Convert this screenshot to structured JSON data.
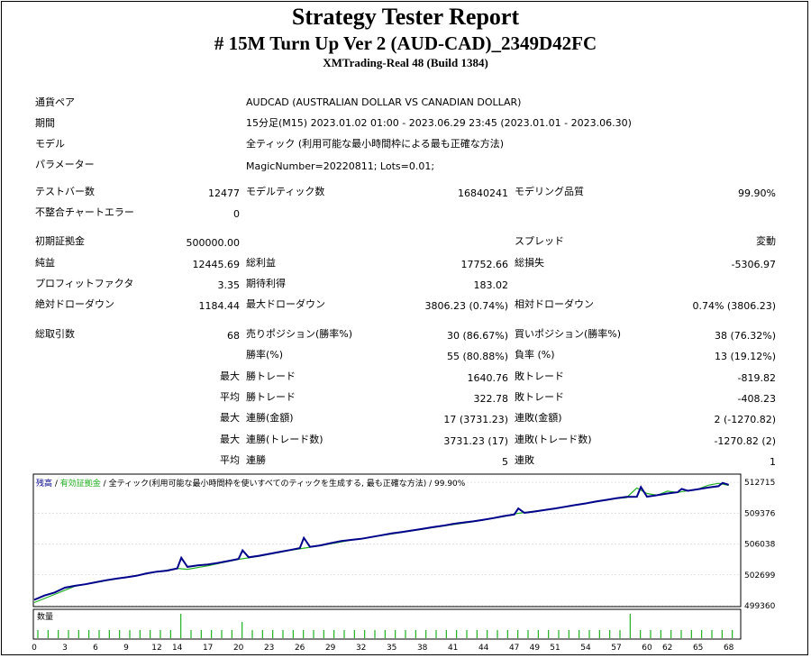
{
  "report": {
    "title": "Strategy Tester Report",
    "subtitle": "# 15M Turn Up Ver 2 (AUD-CAD)_2349D42FC",
    "server": "XMTrading-Real 48 (Build 1384)"
  },
  "info": {
    "symbol_label": "通貨ペア",
    "symbol_value": "AUDCAD (AUSTRALIAN DOLLAR VS CANADIAN DOLLAR)",
    "period_label": "期間",
    "period_value": "15分足(M15) 2023.01.02 01:00 - 2023.06.29 23:45 (2023.01.01 - 2023.06.30)",
    "model_label": "モデル",
    "model_value": "全ティック (利用可能な最小時間枠による最も正確な方法)",
    "params_label": "パラメーター",
    "params_value": "MagicNumber=20220811; Lots=0.01;"
  },
  "stats": {
    "bars_label": "テストバー数",
    "bars_value": "12477",
    "ticks_label": "モデルティック数",
    "ticks_value": "16840241",
    "quality_label": "モデリング品質",
    "quality_value": "99.90%",
    "errors_label": "不整合チャートエラー",
    "errors_value": "0",
    "deposit_label": "初期証拠金",
    "deposit_value": "500000.00",
    "spread_label": "スプレッド",
    "spread_value": "変動",
    "net_label": "純益",
    "net_value": "12445.69",
    "gross_profit_label": "総利益",
    "gross_profit_value": "17752.66",
    "gross_loss_label": "総損失",
    "gross_loss_value": "-5306.97",
    "pf_label": "プロフィットファクタ",
    "pf_value": "3.35",
    "expected_label": "期待利得",
    "expected_value": "183.02",
    "abs_dd_label": "絶対ドローダウン",
    "abs_dd_value": "1184.44",
    "max_dd_label": "最大ドローダウン",
    "max_dd_value": "3806.23 (0.74%)",
    "rel_dd_label": "相対ドローダウン",
    "rel_dd_value": "0.74% (3806.23)",
    "total_label": "総取引数",
    "total_value": "68",
    "short_label": "売りポジション(勝率%)",
    "short_value": "30 (86.67%)",
    "long_label": "買いポジション(勝率%)",
    "long_value": "38 (76.32%)",
    "win_label": "勝率(%)",
    "win_value": "55 (80.88%)",
    "loss_label": "負率 (%)",
    "loss_value": "13 (19.12%)",
    "max_label": "最大",
    "avg_label": "平均",
    "largest_win_label": "勝トレード",
    "largest_win_value": "1640.76",
    "largest_loss_label": "敗トレード",
    "largest_loss_value": "-819.82",
    "avg_win_label": "勝トレード",
    "avg_win_value": "322.78",
    "avg_loss_label": "敗トレード",
    "avg_loss_value": "-408.23",
    "cons_win_money_label": "連勝(金額)",
    "cons_win_money_value": "17 (3731.23)",
    "cons_loss_money_label": "連敗(金額)",
    "cons_loss_money_value": "2 (-1270.82)",
    "cons_win_count_label": "連勝(トレード数)",
    "cons_win_count_value": "3731.23 (17)",
    "cons_loss_count_label": "連敗(トレード数)",
    "cons_loss_count_value": "-1270.82 (2)",
    "avg_cons_win_label": "連勝",
    "avg_cons_win_value": "5",
    "avg_cons_loss_label": "連敗",
    "avg_cons_loss_value": "1"
  },
  "legend": {
    "balance": "残高",
    "sep1": " / ",
    "equity": "有効証拠金",
    "sep2": " / ",
    "model": "全ティック(利用可能な最小時間枠を使いすべてのティックを生成する, 最も正確な方法)",
    "sep3": " / ",
    "quality": "99.90%",
    "volume": "数量"
  },
  "colors": {
    "balance": "#00008b",
    "equity": "#22b022",
    "volume": "#22b022",
    "grid": "#c8c8c8"
  },
  "chart_data": {
    "type": "line",
    "x_ticks": [
      0,
      3,
      6,
      9,
      12,
      14,
      17,
      20,
      23,
      26,
      29,
      32,
      35,
      38,
      41,
      44,
      47,
      49,
      51,
      54,
      57,
      60,
      62,
      65,
      68
    ],
    "y_ticks": [
      512715,
      509376,
      506038,
      502699,
      499360
    ],
    "ylim": [
      499360,
      513500
    ],
    "xlim": [
      0,
      69
    ],
    "series": [
      {
        "name": "残高",
        "x": [
          0,
          1,
          2,
          3,
          4,
          5,
          6,
          7,
          8,
          9,
          10,
          11,
          12,
          13,
          14,
          15,
          16,
          17,
          18,
          19,
          20,
          21,
          22,
          23,
          24,
          25,
          26,
          27,
          28,
          29,
          30,
          31,
          32,
          33,
          34,
          35,
          36,
          37,
          38,
          39,
          40,
          41,
          42,
          43,
          44,
          45,
          46,
          47,
          48,
          49,
          50,
          51,
          52,
          53,
          54,
          55,
          56,
          57,
          58,
          59,
          60,
          61,
          62,
          63,
          64,
          65,
          66,
          67,
          68
        ],
        "values": [
          500000,
          500460,
          500790,
          501310,
          501520,
          501680,
          501900,
          502110,
          502290,
          502430,
          502600,
          502860,
          503050,
          503150,
          503400,
          503560,
          503720,
          503820,
          503990,
          504200,
          504420,
          504600,
          504760,
          504970,
          505170,
          505380,
          505590,
          505730,
          505880,
          506130,
          506340,
          506480,
          506600,
          506790,
          506990,
          507180,
          507340,
          507500,
          507680,
          507850,
          508010,
          508200,
          508360,
          508490,
          508660,
          508850,
          509060,
          509230,
          509400,
          509550,
          509720,
          509880,
          510070,
          510260,
          510430,
          510630,
          510810,
          510980,
          511140,
          511150,
          511160,
          511320,
          511500,
          511640,
          511790,
          511960,
          512140,
          512290,
          512445
        ]
      },
      {
        "name": "有効証拠金",
        "x": [
          0,
          4,
          8,
          12,
          14,
          15,
          17,
          20,
          22,
          25,
          28,
          31,
          34,
          37,
          40,
          43,
          46,
          47,
          48,
          51,
          54,
          57,
          58,
          59,
          60,
          61,
          62,
          63,
          64,
          65,
          66,
          67,
          68
        ],
        "values": [
          499700,
          501480,
          502260,
          503020,
          503400,
          503300,
          503680,
          504380,
          504700,
          505350,
          505850,
          506450,
          506950,
          507460,
          507980,
          508450,
          509000,
          509300,
          509450,
          509860,
          510420,
          510960,
          511050,
          512100,
          511500,
          511320,
          511750,
          511620,
          511800,
          511970,
          512400,
          512600,
          512380
        ]
      }
    ],
    "spikes": {
      "balance": [
        [
          14,
          504550
        ],
        [
          20,
          505350
        ],
        [
          26,
          506700
        ],
        [
          47,
          509880
        ],
        [
          59,
          512200
        ],
        [
          63,
          512000
        ],
        [
          67,
          512650
        ]
      ]
    },
    "volume": [
      1,
      1,
      1,
      1,
      1,
      1,
      1,
      1,
      1,
      1,
      1,
      1,
      1,
      1,
      3,
      1,
      1,
      1,
      1,
      1,
      2,
      1,
      1,
      1,
      1,
      1,
      1,
      1,
      1,
      1,
      1,
      1,
      1,
      1,
      1,
      1,
      1,
      1,
      1,
      1,
      1,
      1,
      1,
      1,
      1,
      1,
      1,
      1,
      1,
      1,
      1,
      1,
      1,
      1,
      1,
      1,
      1,
      1,
      3,
      1,
      1,
      1,
      1,
      1,
      1,
      1,
      1,
      1,
      1
    ]
  }
}
